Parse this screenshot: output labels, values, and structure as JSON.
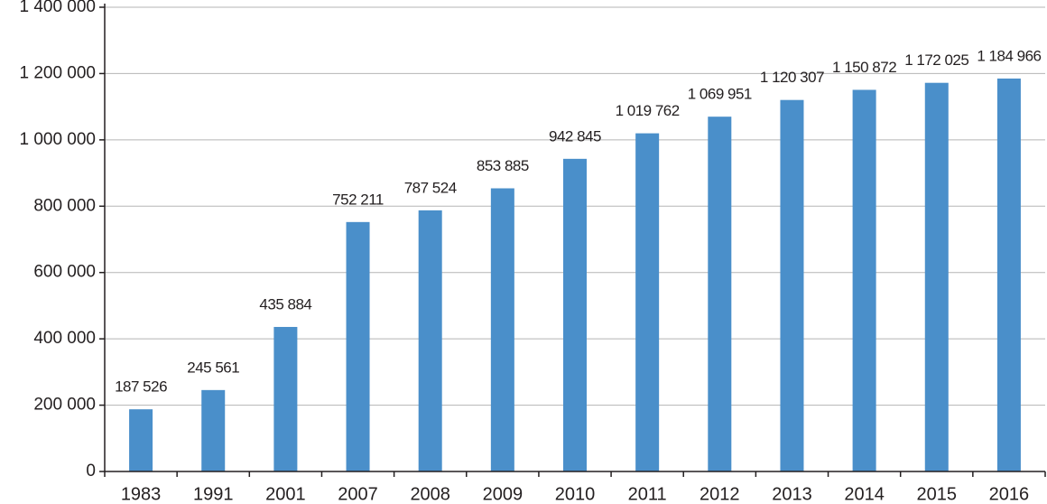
{
  "chart_data": {
    "type": "bar",
    "categories": [
      "1983",
      "1991",
      "2001",
      "2007",
      "2008",
      "2009",
      "2010",
      "2011",
      "2012",
      "2013",
      "2014",
      "2015",
      "2016"
    ],
    "values": [
      187526,
      245561,
      435884,
      752211,
      787524,
      853885,
      942845,
      1019762,
      1069951,
      1120307,
      1150872,
      1172025,
      1184966
    ],
    "value_labels": [
      "187 526",
      "245 561",
      "435 884",
      "752 211",
      "787 524",
      "853 885",
      "942 845",
      "1 019 762",
      "1 069 951",
      "1 120 307",
      "1 150 872",
      "1 172 025",
      "1 184 966"
    ],
    "color": "#4a8fca",
    "ylim": [
      0,
      1400000
    ],
    "yticks": [
      0,
      {
        "value": 200000,
        "label": "200 000"
      },
      {
        "value": 400000,
        "label": "400 000"
      },
      {
        "value": 600000,
        "label": "600 000"
      },
      {
        "value": 800000,
        "label": "800 000"
      },
      {
        "value": 1000000,
        "label": "1 000 000"
      },
      {
        "value": 1200000,
        "label": "1 200 000"
      },
      {
        "value": 1400000,
        "label": "1 400 000"
      }
    ],
    "grid": true
  }
}
